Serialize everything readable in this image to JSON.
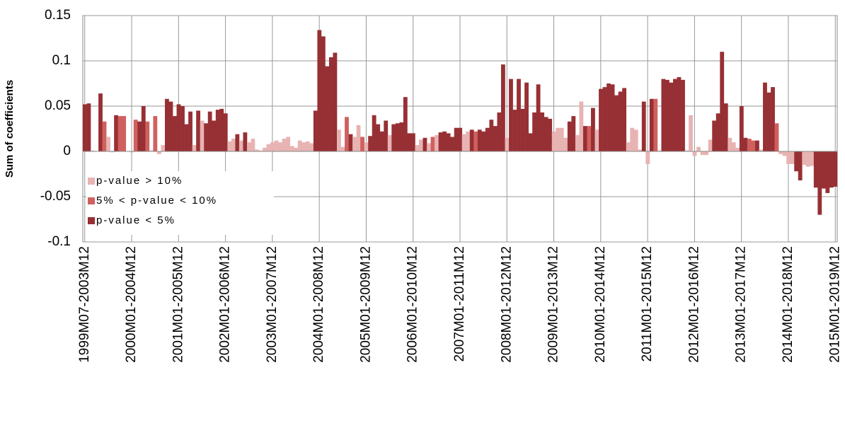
{
  "chart_data": {
    "type": "bar",
    "y_label": "Sum of coefficients",
    "ylim": [
      -0.1,
      0.15
    ],
    "yticks": [
      -0.1,
      -0.05,
      0,
      0.05,
      0.1,
      0.15
    ],
    "grid": true,
    "legend": "lower-left",
    "series": [
      {
        "name": "p-value > 10%",
        "color": "#e8b3b3"
      },
      {
        "name": "5% < p-value < 10%",
        "color": "#d0605e"
      },
      {
        "name": "p-value < 5%",
        "color": "#973034"
      }
    ],
    "categories": [
      "1999M07-2003M12",
      null,
      null,
      null,
      null,
      null,
      null,
      null,
      null,
      null,
      null,
      null,
      "2000M01-2004M12",
      null,
      null,
      null,
      null,
      null,
      null,
      null,
      null,
      null,
      null,
      null,
      "2001M01-2005M12",
      null,
      null,
      null,
      null,
      null,
      null,
      null,
      null,
      null,
      null,
      null,
      "2002M01-2006M12",
      null,
      null,
      null,
      null,
      null,
      null,
      null,
      null,
      null,
      null,
      null,
      "2003M01-2007M12",
      null,
      null,
      null,
      null,
      null,
      null,
      null,
      null,
      null,
      null,
      null,
      "2004M01-2008M12",
      null,
      null,
      null,
      null,
      null,
      null,
      null,
      null,
      null,
      null,
      null,
      "2005M01-2009M12",
      null,
      null,
      null,
      null,
      null,
      null,
      null,
      null,
      null,
      null,
      null,
      "2006M01-2010M12",
      null,
      null,
      null,
      null,
      null,
      null,
      null,
      null,
      null,
      null,
      null,
      "2007M01-2011M12",
      null,
      null,
      null,
      null,
      null,
      null,
      null,
      null,
      null,
      null,
      null,
      "2008M01-2012M12",
      null,
      null,
      null,
      null,
      null,
      null,
      null,
      null,
      null,
      null,
      null,
      "2009M01-2013M12",
      null,
      null,
      null,
      null,
      null,
      null,
      null,
      null,
      null,
      null,
      null,
      "2010M01-2014M12",
      null,
      null,
      null,
      null,
      null,
      null,
      null,
      null,
      null,
      null,
      null,
      "2011M01-2015M12",
      null,
      null,
      null,
      null,
      null,
      null,
      null,
      null,
      null,
      null,
      null,
      "2012M01-2016M12",
      null,
      null,
      null,
      null,
      null,
      null,
      null,
      null,
      null,
      null,
      null,
      "2013M01-2017M12",
      null,
      null,
      null,
      null,
      null,
      null,
      null,
      null,
      null,
      null,
      null,
      "2014M01-2018M12",
      null,
      null,
      null,
      null,
      null,
      null,
      null,
      null,
      null,
      null,
      null,
      "2015M01-2019M12"
    ],
    "values": [
      0.052,
      0.053,
      0.001,
      0.0,
      0.064,
      0.033,
      0.016,
      -0.001,
      0.04,
      0.039,
      0.039,
      0.0,
      -0.001,
      0.035,
      0.033,
      0.05,
      0.033,
      0.001,
      0.039,
      -0.003,
      0.007,
      0.058,
      0.055,
      0.039,
      0.052,
      0.05,
      0.03,
      0.044,
      0.007,
      0.045,
      0.034,
      0.031,
      0.044,
      0.034,
      0.046,
      0.047,
      0.042,
      0.011,
      0.014,
      0.019,
      0.012,
      0.021,
      0.01,
      0.014,
      0.002,
      0.001,
      0.004,
      0.008,
      0.01,
      0.012,
      0.01,
      0.014,
      0.016,
      0.006,
      0.004,
      0.012,
      0.01,
      0.011,
      0.009,
      0.045,
      0.134,
      0.127,
      0.094,
      0.104,
      0.109,
      0.024,
      0.005,
      0.038,
      0.019,
      0.016,
      0.029,
      0.016,
      0.01,
      0.017,
      0.04,
      0.03,
      0.022,
      0.034,
      0.018,
      0.03,
      0.031,
      0.032,
      0.06,
      0.02,
      0.02,
      0.007,
      0.013,
      0.015,
      0.009,
      0.016,
      0.018,
      0.021,
      0.022,
      0.02,
      0.016,
      0.026,
      0.026,
      0.019,
      0.022,
      0.024,
      0.022,
      0.024,
      0.022,
      0.026,
      0.035,
      0.028,
      0.043,
      0.096,
      0.015,
      0.08,
      0.046,
      0.08,
      0.047,
      0.076,
      0.02,
      0.043,
      0.074,
      0.043,
      0.038,
      0.036,
      0.022,
      0.026,
      0.026,
      0.015,
      0.033,
      0.039,
      0.018,
      0.055,
      0.028,
      0.028,
      0.048,
      0.024,
      0.069,
      0.071,
      0.075,
      0.074,
      0.062,
      0.066,
      0.07,
      0.01,
      0.026,
      0.024,
      0.002,
      0.055,
      -0.014,
      0.058,
      0.058,
      0.001,
      0.08,
      0.079,
      0.076,
      0.08,
      0.082,
      0.079,
      0.001,
      0.04,
      -0.005,
      0.005,
      -0.004,
      -0.004,
      0.013,
      0.034,
      0.042,
      0.11,
      0.053,
      0.015,
      0.01,
      0.004,
      0.05,
      0.015,
      0.014,
      0.012,
      0.012,
      0.002,
      0.076,
      0.065,
      0.071,
      0.031,
      -0.003,
      -0.005,
      -0.014,
      -0.014,
      -0.022,
      -0.032,
      -0.015,
      -0.017,
      -0.016,
      -0.04,
      -0.07,
      -0.041,
      -0.046,
      -0.04,
      -0.039
    ],
    "significance": [
      2,
      2,
      0,
      0,
      2,
      1,
      0,
      0,
      2,
      1,
      1,
      0,
      0,
      1,
      2,
      2,
      1,
      0,
      1,
      0,
      0,
      2,
      2,
      2,
      2,
      2,
      2,
      2,
      0,
      2,
      0,
      2,
      2,
      2,
      2,
      2,
      2,
      0,
      0,
      2,
      0,
      2,
      0,
      0,
      0,
      0,
      0,
      0,
      0,
      0,
      0,
      0,
      0,
      0,
      0,
      0,
      0,
      0,
      0,
      2,
      2,
      2,
      2,
      2,
      2,
      0,
      0,
      1,
      2,
      0,
      0,
      1,
      0,
      2,
      2,
      2,
      2,
      2,
      0,
      2,
      2,
      2,
      2,
      2,
      2,
      0,
      0,
      2,
      0,
      1,
      0,
      2,
      2,
      2,
      2,
      2,
      2,
      0,
      0,
      2,
      1,
      2,
      2,
      2,
      2,
      2,
      2,
      2,
      0,
      2,
      2,
      2,
      2,
      2,
      2,
      2,
      2,
      2,
      2,
      2,
      0,
      0,
      0,
      0,
      2,
      2,
      0,
      0,
      2,
      1,
      2,
      0,
      2,
      2,
      2,
      2,
      2,
      2,
      2,
      0,
      0,
      0,
      0,
      2,
      0,
      2,
      1,
      0,
      2,
      2,
      2,
      2,
      2,
      2,
      0,
      0,
      0,
      0,
      0,
      0,
      0,
      2,
      2,
      2,
      2,
      0,
      0,
      0,
      2,
      2,
      1,
      1,
      2,
      0,
      2,
      2,
      2,
      1,
      0,
      0,
      0,
      0,
      2,
      2,
      0,
      0,
      0,
      2,
      2,
      2,
      2,
      2,
      2
    ]
  }
}
